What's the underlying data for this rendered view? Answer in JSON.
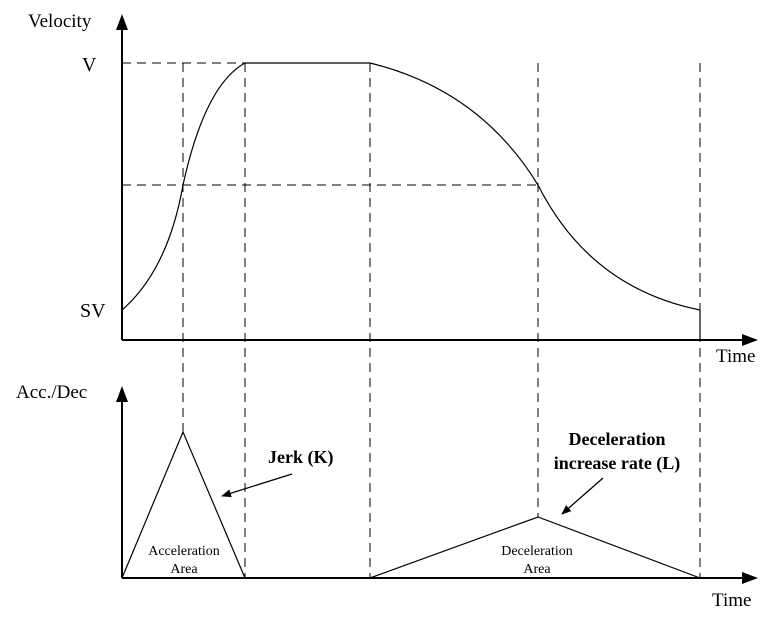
{
  "top_graph": {
    "y_axis_label": "Velocity",
    "x_axis_label": "Time",
    "level_high_label": "V",
    "level_low_label": "SV"
  },
  "bottom_graph": {
    "y_axis_label": "Acc./Dec",
    "x_axis_label": "Time",
    "acceleration_area_line1": "Acceleration",
    "acceleration_area_line2": "Area",
    "deceleration_area_line1": "Deceleration",
    "deceleration_area_line2": "Area"
  },
  "annotations": {
    "jerk_label": "Jerk (K)",
    "decel_rate_line1": "Deceleration",
    "decel_rate_line2": "increase rate (L)"
  }
}
